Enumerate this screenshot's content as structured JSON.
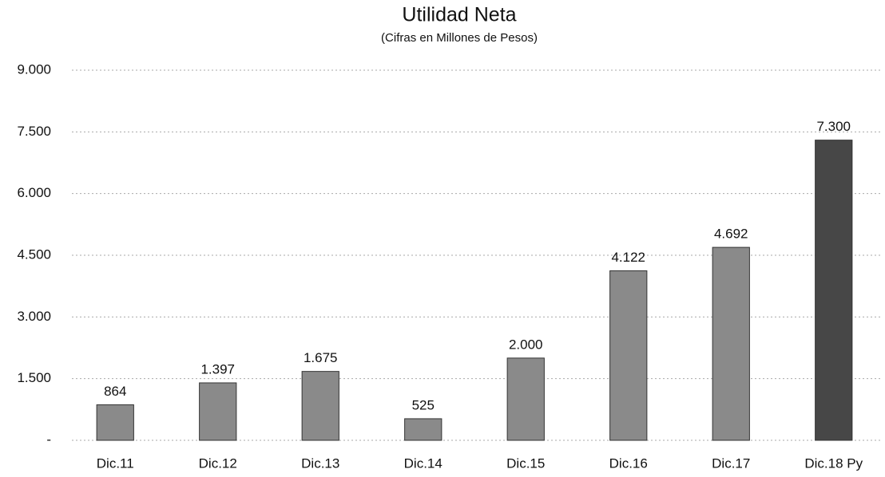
{
  "chart_data": {
    "type": "bar",
    "title": "Utilidad Neta",
    "subtitle": "(Cifras en Millones de Pesos)",
    "categories": [
      "Dic.11",
      "Dic.12",
      "Dic.13",
      "Dic.14",
      "Dic.15",
      "Dic.16",
      "Dic.17",
      "Dic.18 Py"
    ],
    "values": [
      864,
      1397,
      1675,
      525,
      2000,
      4122,
      4692,
      7300
    ],
    "value_labels": [
      "864",
      "1.397",
      "1.675",
      "525",
      "2.000",
      "4.122",
      "4.692",
      "7.300"
    ],
    "colors": [
      "#8a8a8a",
      "#8a8a8a",
      "#8a8a8a",
      "#8a8a8a",
      "#8a8a8a",
      "#8a8a8a",
      "#8a8a8a",
      "#474747"
    ],
    "ylim": [
      0,
      9000
    ],
    "yticks": [
      {
        "value": 0,
        "label": "-"
      },
      {
        "value": 1500,
        "label": "1.500"
      },
      {
        "value": 3000,
        "label": "3.000"
      },
      {
        "value": 4500,
        "label": "4.500"
      },
      {
        "value": 6000,
        "label": "6.000"
      },
      {
        "value": 7500,
        "label": "7.500"
      },
      {
        "value": 9000,
        "label": "9.000"
      }
    ],
    "grid": true
  }
}
